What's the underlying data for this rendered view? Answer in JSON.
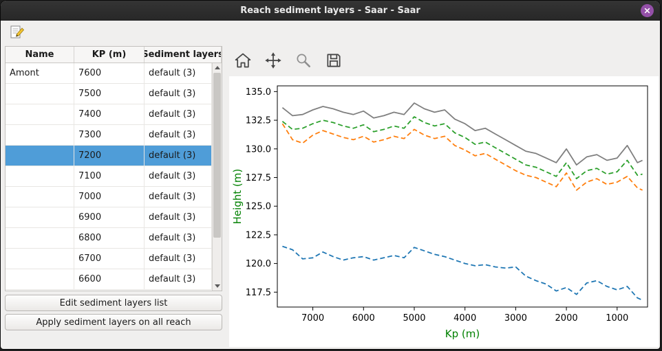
{
  "window": {
    "title": "Reach sediment layers - Saar - Saar"
  },
  "colors": {
    "selection": "#4f9dd8",
    "close_button": "#9450a8",
    "axis_label": "#008000"
  },
  "icons": [
    "edit-layers-icon",
    "home-icon",
    "pan-icon",
    "zoom-icon",
    "save-icon",
    "close-icon"
  ],
  "table": {
    "headers": [
      "Name",
      "KP (m)",
      "Sediment layers"
    ],
    "rows": [
      {
        "name": "Amont",
        "kp": "7600",
        "layers": "default (3)",
        "selected": false
      },
      {
        "name": "",
        "kp": "7500",
        "layers": "default (3)",
        "selected": false
      },
      {
        "name": "",
        "kp": "7400",
        "layers": "default (3)",
        "selected": false
      },
      {
        "name": "",
        "kp": "7300",
        "layers": "default (3)",
        "selected": false
      },
      {
        "name": "",
        "kp": "7200",
        "layers": "default (3)",
        "selected": true
      },
      {
        "name": "",
        "kp": "7100",
        "layers": "default (3)",
        "selected": false
      },
      {
        "name": "",
        "kp": "7000",
        "layers": "default (3)",
        "selected": false
      },
      {
        "name": "",
        "kp": "6900",
        "layers": "default (3)",
        "selected": false
      },
      {
        "name": "",
        "kp": "6800",
        "layers": "default (3)",
        "selected": false
      },
      {
        "name": "",
        "kp": "6700",
        "layers": "default (3)",
        "selected": false
      },
      {
        "name": "",
        "kp": "6600",
        "layers": "default (3)",
        "selected": false
      }
    ]
  },
  "buttons": {
    "edit": "Edit sediment layers list",
    "apply": "Apply sediment layers on all reach"
  },
  "chart_data": {
    "type": "line",
    "title": "",
    "xlabel": "Kp (m)",
    "ylabel": "Height (m)",
    "x_inverted": true,
    "xlim": [
      7700,
      400
    ],
    "ylim": [
      116.2,
      135.5
    ],
    "x_ticks": [
      7000,
      6000,
      5000,
      4000,
      3000,
      2000,
      1000
    ],
    "y_ticks": [
      117.5,
      120.0,
      122.5,
      125.0,
      127.5,
      130.0,
      132.5,
      135.0
    ],
    "grid": false,
    "legend": "none",
    "x": [
      7600,
      7400,
      7200,
      7000,
      6800,
      6600,
      6400,
      6200,
      6000,
      5800,
      5600,
      5400,
      5200,
      5000,
      4800,
      4600,
      4400,
      4200,
      4000,
      3800,
      3600,
      3400,
      3200,
      3000,
      2800,
      2600,
      2400,
      2200,
      2000,
      1800,
      1600,
      1400,
      1200,
      1000,
      800,
      600,
      500
    ],
    "series": [
      {
        "name": "top-level",
        "color": "#7f7f7f",
        "style": "solid",
        "values": [
          133.6,
          132.9,
          133.0,
          133.4,
          133.7,
          133.5,
          133.2,
          133.0,
          133.3,
          132.7,
          132.9,
          133.2,
          133.0,
          134.0,
          133.5,
          133.2,
          133.4,
          132.6,
          132.2,
          131.6,
          131.8,
          131.3,
          130.8,
          130.3,
          129.8,
          129.6,
          129.2,
          128.8,
          130.0,
          128.6,
          129.3,
          129.5,
          129.0,
          129.2,
          130.3,
          128.8,
          129.0
        ]
      },
      {
        "name": "layer-green",
        "color": "#2ca02c",
        "style": "dashed",
        "values": [
          132.4,
          131.7,
          131.8,
          132.2,
          132.5,
          132.3,
          132.0,
          131.8,
          132.1,
          131.5,
          131.7,
          132.0,
          131.8,
          132.8,
          132.3,
          132.0,
          132.2,
          131.4,
          131.0,
          130.4,
          130.6,
          130.1,
          129.6,
          129.1,
          128.6,
          128.4,
          128.0,
          127.6,
          128.8,
          127.4,
          128.1,
          128.3,
          127.8,
          128.0,
          129.0,
          127.7,
          127.8
        ]
      },
      {
        "name": "layer-orange",
        "color": "#ff7f0e",
        "style": "dashed",
        "values": [
          132.2,
          130.8,
          130.5,
          131.2,
          131.6,
          131.3,
          131.0,
          130.8,
          131.1,
          130.6,
          130.8,
          131.1,
          130.9,
          131.7,
          131.2,
          130.9,
          131.1,
          130.3,
          129.9,
          129.4,
          129.6,
          129.1,
          128.6,
          128.1,
          127.7,
          127.5,
          127.1,
          126.7,
          127.9,
          126.4,
          127.1,
          127.4,
          126.9,
          127.1,
          127.6,
          126.6,
          126.4
        ]
      },
      {
        "name": "layer-blue",
        "color": "#1f77b4",
        "style": "dashed",
        "values": [
          121.5,
          121.2,
          120.4,
          120.5,
          121.0,
          120.6,
          120.3,
          120.5,
          120.6,
          120.3,
          120.5,
          120.7,
          120.5,
          121.4,
          121.1,
          120.8,
          120.6,
          120.3,
          120.0,
          119.8,
          119.9,
          119.7,
          119.6,
          119.7,
          118.9,
          118.5,
          118.2,
          117.6,
          117.9,
          117.3,
          118.3,
          118.5,
          118.0,
          117.7,
          118.0,
          117.0,
          116.8
        ]
      }
    ]
  }
}
